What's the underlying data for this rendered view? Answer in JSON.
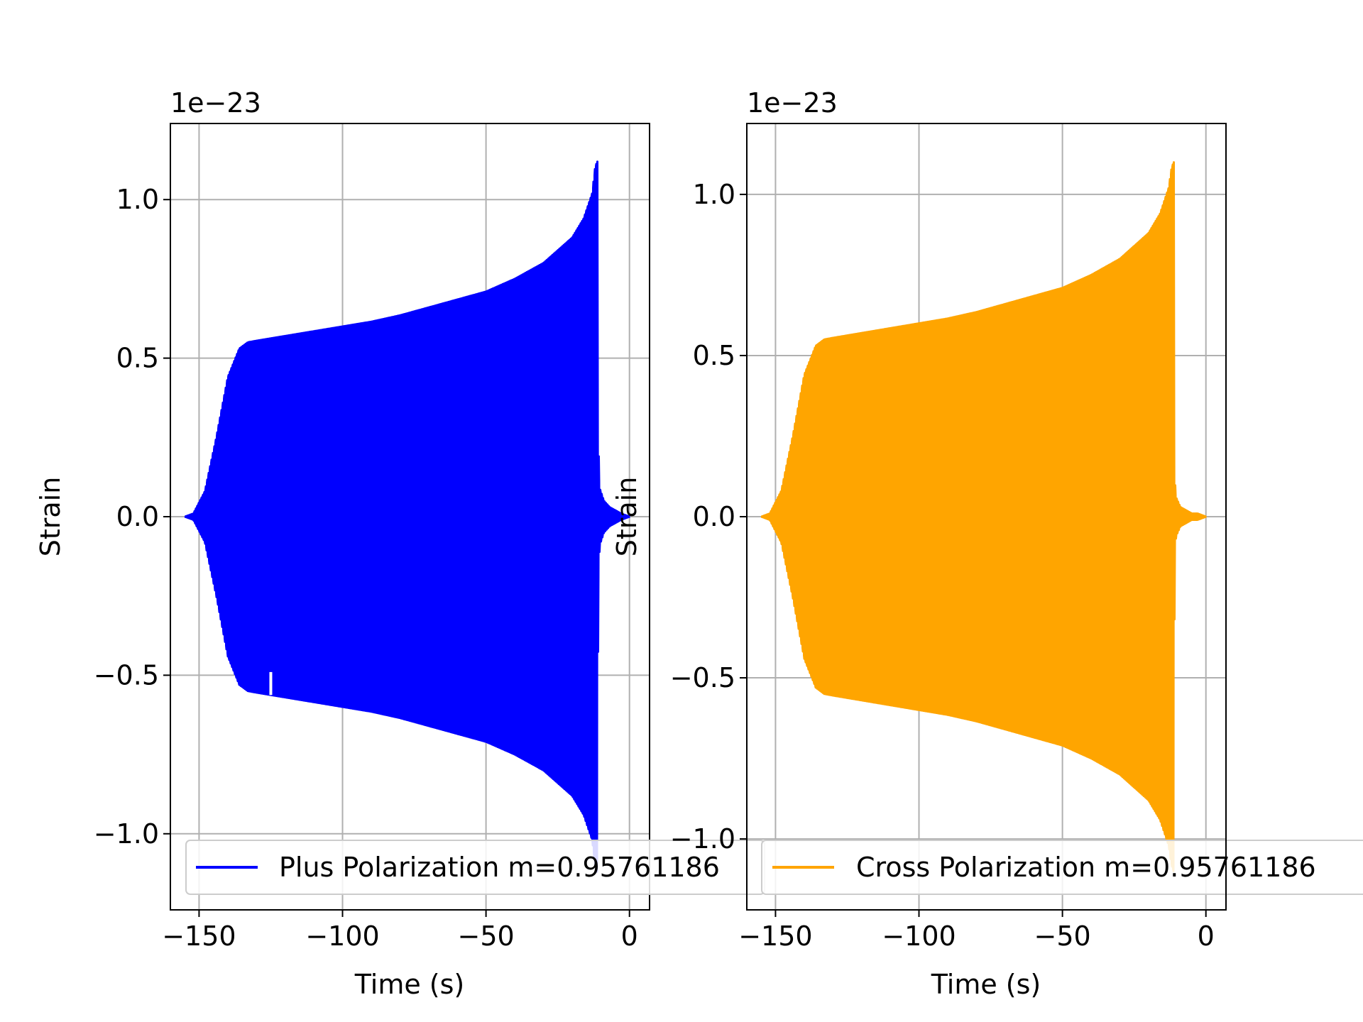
{
  "figure": {
    "background": "#ffffff",
    "grid_color": "#b0b0b0"
  },
  "chart_data": [
    {
      "type": "line",
      "title": "",
      "xlabel": "Time (s)",
      "ylabel": "Strain",
      "offset_text": "1e−23",
      "xlim": [
        -160,
        7
      ],
      "ylim": [
        -1.24,
        1.24
      ],
      "xticks": [
        -150,
        -100,
        -50,
        0
      ],
      "xtick_labels": [
        "−150",
        "−100",
        "−50",
        "0"
      ],
      "yticks": [
        -1.0,
        -0.5,
        0.0,
        0.5,
        1.0
      ],
      "ytick_labels": [
        "−1.0",
        "−0.5",
        "0.0",
        "0.5",
        "1.0"
      ],
      "grid": true,
      "legend_position": "lower-left",
      "series": [
        {
          "name": "Plus Polarization m=0.95761186",
          "color": "#0000ff",
          "style": "oscillating-chirp",
          "envelope": {
            "t": [
              -155,
              -152,
              -148,
              -144,
              -140,
              -136,
              -133,
              -130,
              -120,
              -110,
              -100,
              -90,
              -80,
              -70,
              -60,
              -50,
              -40,
              -30,
              -25,
              -20,
              -16,
              -13,
              -12,
              -11.3,
              -11,
              -10.5,
              -9,
              -7,
              -5,
              -3,
              0
            ],
            "amp": [
              0.0,
              0.01,
              0.08,
              0.25,
              0.44,
              0.53,
              0.55,
              0.555,
              0.57,
              0.585,
              0.6,
              0.615,
              0.635,
              0.66,
              0.685,
              0.71,
              0.75,
              0.8,
              0.84,
              0.88,
              0.94,
              1.02,
              1.1,
              1.12,
              0.25,
              0.09,
              0.05,
              0.03,
              0.02,
              0.01,
              0.0
            ]
          },
          "upper_peak": 1.13,
          "lower_peak": -1.07,
          "glitches": [
            {
              "t": -125,
              "value": -0.49
            },
            {
              "t": -32,
              "value": 0.79
            }
          ]
        }
      ]
    },
    {
      "type": "line",
      "title": "",
      "xlabel": "Time (s)",
      "ylabel": "Strain",
      "offset_text": "1e−23",
      "xlim": [
        -160,
        7
      ],
      "ylim": [
        -1.22,
        1.22
      ],
      "xticks": [
        -150,
        -100,
        -50,
        0
      ],
      "xtick_labels": [
        "−150",
        "−100",
        "−50",
        "0"
      ],
      "yticks": [
        -1.0,
        -0.5,
        0.0,
        0.5,
        1.0
      ],
      "ytick_labels": [
        "−1.0",
        "−0.5",
        "0.0",
        "0.5",
        "1.0"
      ],
      "grid": true,
      "legend_position": "lower-left",
      "series": [
        {
          "name": "Cross Polarization m=0.95761186",
          "color": "#ffa500",
          "style": "oscillating-chirp",
          "envelope": {
            "t": [
              -155,
              -152,
              -148,
              -144,
              -140,
              -136,
              -133,
              -130,
              -120,
              -110,
              -100,
              -90,
              -80,
              -70,
              -60,
              -50,
              -40,
              -30,
              -25,
              -20,
              -16,
              -13,
              -12,
              -11.3,
              -11,
              -10.5,
              -9,
              -7,
              -5,
              -3,
              0
            ],
            "amp": [
              0.0,
              0.01,
              0.08,
              0.25,
              0.44,
              0.53,
              0.55,
              0.555,
              0.57,
              0.585,
              0.6,
              0.615,
              0.635,
              0.66,
              0.685,
              0.71,
              0.75,
              0.8,
              0.84,
              0.88,
              0.94,
              1.02,
              1.08,
              1.1,
              0.12,
              0.06,
              0.03,
              0.02,
              0.01,
              0.01,
              0.0
            ]
          },
          "upper_peak": 1.11,
          "lower_peak": -1.07,
          "glitches": []
        }
      ]
    }
  ]
}
